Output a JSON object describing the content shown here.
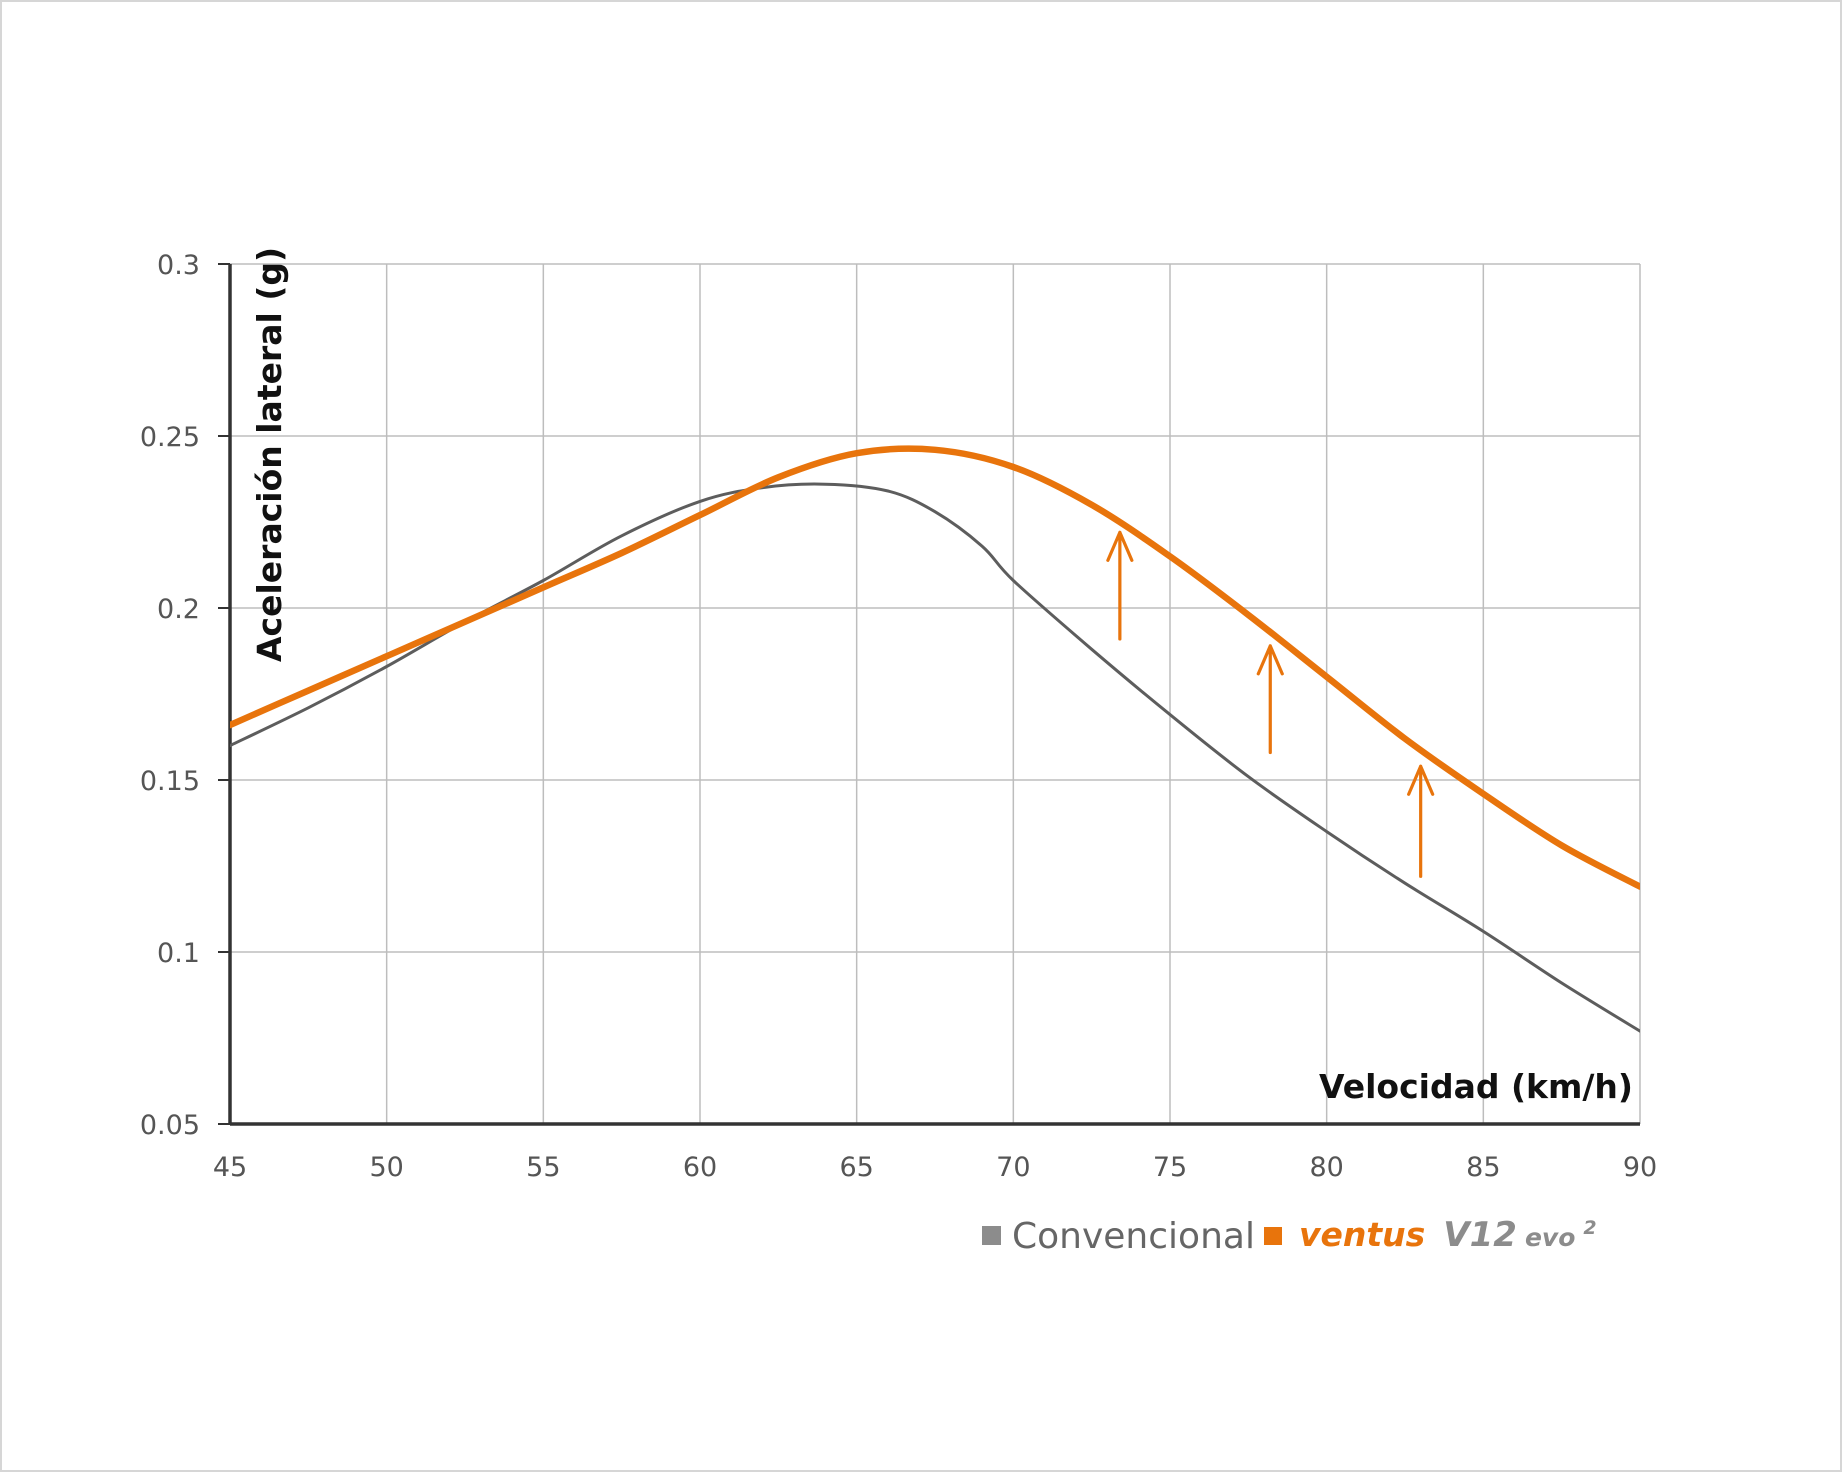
{
  "chart_data": {
    "type": "line",
    "title": "",
    "xlabel": "Velocidad (km/h)",
    "ylabel": "Aceleración lateral (g)",
    "xlim": [
      45,
      90
    ],
    "ylim": [
      0.05,
      0.3
    ],
    "x_ticks": [
      45,
      50,
      55,
      60,
      65,
      70,
      75,
      80,
      85,
      90
    ],
    "x_tick_labels": [
      "45",
      "50",
      "55",
      "60",
      "65",
      "70",
      "75",
      "80",
      "85",
      "90"
    ],
    "y_ticks": [
      0.05,
      0.1,
      0.15,
      0.2,
      0.25,
      0.3
    ],
    "y_tick_labels": [
      "0.05",
      "0.1",
      "0.15",
      "0.2",
      "0.25",
      "0.3"
    ],
    "grid": true,
    "legend_position": "bottom-right",
    "series": [
      {
        "name": "Convencional",
        "color": "#5d5d5d",
        "x": [
          45,
          47.5,
          50,
          52.5,
          55,
          57.5,
          60,
          62,
          64,
          66,
          67.5,
          69,
          70,
          72.5,
          75,
          77.5,
          80,
          82.5,
          85,
          87.5,
          90
        ],
        "y": [
          0.16,
          0.171,
          0.183,
          0.196,
          0.208,
          0.221,
          0.231,
          0.235,
          0.236,
          0.234,
          0.228,
          0.218,
          0.208,
          0.188,
          0.169,
          0.151,
          0.135,
          0.12,
          0.106,
          0.091,
          0.077
        ]
      },
      {
        "name": "ventus V12 evo2",
        "color": "#e8740c",
        "x": [
          45,
          47.5,
          50,
          52.5,
          55,
          57.5,
          60,
          62.5,
          65,
          67.5,
          70,
          72.5,
          75,
          77.5,
          80,
          82.5,
          85,
          87.5,
          90
        ],
        "y": [
          0.166,
          0.176,
          0.186,
          0.196,
          0.206,
          0.216,
          0.227,
          0.238,
          0.245,
          0.246,
          0.241,
          0.23,
          0.215,
          0.198,
          0.18,
          0.162,
          0.146,
          0.131,
          0.119
        ]
      }
    ],
    "annotations": [
      {
        "type": "arrow",
        "x": 73.4,
        "y_from": 0.191,
        "y_to": 0.222
      },
      {
        "type": "arrow",
        "x": 78.2,
        "y_from": 0.158,
        "y_to": 0.189
      },
      {
        "type": "arrow",
        "x": 83.0,
        "y_from": 0.122,
        "y_to": 0.154
      }
    ]
  },
  "legend": {
    "conventional_label": "Convencional",
    "ventus_brand": "ventus",
    "ventus_model": "V12",
    "ventus_evo": "evo",
    "ventus_superscript": "2"
  },
  "colors": {
    "orange": "#e8740c",
    "gray": "#5d5d5d",
    "grid": "#bdbdbd",
    "axis": "#333333"
  }
}
